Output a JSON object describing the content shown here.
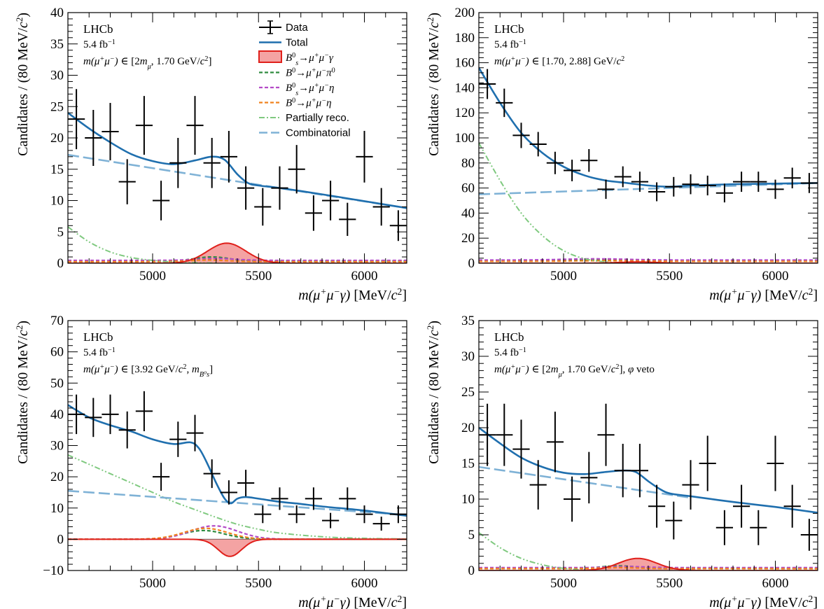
{
  "chart_data": [
    {
      "type": "line",
      "panel": "top-left",
      "ylabel": "Candidates / (80 MeV/c²)",
      "xlabel": "m(μ⁺μ⁻γ) [MeV/c²]",
      "xlim": [
        4600,
        6200
      ],
      "ylim": [
        0,
        40
      ],
      "xticks": [
        5000,
        5500,
        6000
      ],
      "yticks": [
        0,
        5,
        10,
        15,
        20,
        25,
        30,
        35,
        40
      ],
      "annotation": {
        "experiment": "LHCb",
        "lumi": "5.4 fb⁻¹",
        "range": "m(μ⁺μ⁻) ∈ [2m_μ, 1.70 GeV/c²]"
      },
      "legend": {
        "placement": "top-right",
        "entries": [
          "Data",
          "Total",
          "B⁰s→μ⁺μ⁻γ",
          "B⁰→μ⁺μ⁻π⁰",
          "B⁰s→μ⁺μ⁻η",
          "B⁰→μ⁺μ⁻η",
          "Partially reco.",
          "Combinatorial"
        ]
      },
      "data": {
        "x": [
          4640,
          4720,
          4800,
          4880,
          4960,
          5040,
          5120,
          5200,
          5280,
          5360,
          5440,
          5520,
          5600,
          5680,
          5760,
          5840,
          5920,
          6000,
          6080,
          6160
        ],
        "y": [
          23,
          20,
          21,
          13,
          22,
          10,
          16,
          22,
          16,
          17,
          12,
          9,
          12,
          15,
          8,
          10,
          7,
          17,
          9,
          6
        ]
      },
      "series": [
        {
          "name": "Total",
          "x": [
            4600,
            4700,
            4800,
            4900,
            5000,
            5100,
            5200,
            5280,
            5340,
            5400,
            5450,
            5500,
            5600,
            5800,
            6000,
            6200
          ],
          "y": [
            24,
            21.5,
            19.3,
            17.4,
            16.3,
            15.8,
            16.4,
            17.0,
            16.5,
            14.2,
            12.8,
            12.4,
            12.0,
            11.0,
            9.9,
            8.8
          ]
        },
        {
          "name": "Combinatorial",
          "x": [
            4600,
            6200
          ],
          "y": [
            17.3,
            8.8
          ]
        },
        {
          "name": "Partially reco.",
          "x": [
            4600,
            4700,
            4800,
            4900,
            5000,
            5100,
            5200,
            5300
          ],
          "y": [
            5.8,
            3.4,
            1.8,
            0.9,
            0.45,
            0.2,
            0.08,
            0.02
          ]
        },
        {
          "name": "B⁰s→μ⁺μ⁻γ",
          "peak_x": 5350,
          "sigma": 90,
          "peak": 3.2,
          "fill": true
        },
        {
          "name": "B⁰→μ⁺μ⁻π⁰",
          "baseline": 0.35,
          "peak_x": 5280,
          "sigma": 80,
          "peak": 0.65
        },
        {
          "name": "B⁰s→μ⁺μ⁻η",
          "baseline": 0.45,
          "peak_x": 5300,
          "sigma": 90,
          "peak": 0.3
        },
        {
          "name": "B⁰→μ⁺μ⁻η",
          "baseline": 0.25,
          "peak_x": 5260,
          "sigma": 90,
          "peak": 0.25
        }
      ]
    },
    {
      "type": "line",
      "panel": "top-right",
      "ylabel": "Candidates / (80 MeV/c²)",
      "xlabel": "m(μ⁺μ⁻γ) [MeV/c²]",
      "xlim": [
        4600,
        6200
      ],
      "ylim": [
        0,
        200
      ],
      "xticks": [
        5000,
        5500,
        6000
      ],
      "yticks": [
        0,
        20,
        40,
        60,
        80,
        100,
        120,
        140,
        160,
        180,
        200
      ],
      "annotation": {
        "experiment": "LHCb",
        "lumi": "5.4 fb⁻¹",
        "range": "m(μ⁺μ⁻) ∈ [1.70, 2.88] GeV/c²"
      },
      "data": {
        "x": [
          4640,
          4720,
          4800,
          4880,
          4960,
          5040,
          5120,
          5200,
          5280,
          5360,
          5440,
          5520,
          5600,
          5680,
          5760,
          5840,
          5920,
          6000,
          6080,
          6160
        ],
        "y": [
          143,
          128,
          102,
          95,
          80,
          74,
          82,
          59,
          69,
          65,
          57,
          61,
          63,
          62,
          56,
          65,
          65,
          59,
          68,
          64
        ]
      },
      "series": [
        {
          "name": "Total",
          "x": [
            4600,
            4700,
            4800,
            4900,
            5000,
            5100,
            5200,
            5300,
            5400,
            5500,
            5600,
            5800,
            6000,
            6200
          ],
          "y": [
            156,
            128,
            104,
            88,
            77,
            70,
            66,
            64,
            62,
            61,
            62,
            63,
            63.5,
            64
          ]
        },
        {
          "name": "Combinatorial",
          "x": [
            4600,
            6200
          ],
          "y": [
            55,
            64
          ]
        },
        {
          "name": "Partially reco.",
          "x": [
            4600,
            4700,
            4800,
            4900,
            5000,
            5100,
            5200,
            5300
          ],
          "y": [
            96,
            66,
            40,
            22,
            10,
            3.5,
            1,
            0.2
          ]
        },
        {
          "name": "B⁰s→μ⁺μ⁻γ",
          "peak_x": 5350,
          "sigma": 90,
          "peak": 1.0,
          "fill": true
        },
        {
          "name": "B⁰→μ⁺μ⁻π⁰",
          "baseline": 2.0,
          "peak_x": 5200,
          "sigma": 150,
          "peak": 1.0
        },
        {
          "name": "B⁰s→μ⁺μ⁻η",
          "baseline": 2.5,
          "peak_x": 5150,
          "sigma": 150,
          "peak": 1.0
        },
        {
          "name": "B⁰→μ⁺μ⁻η",
          "baseline": 1.5,
          "peak_x": 5200,
          "sigma": 150,
          "peak": 0.5
        }
      ]
    },
    {
      "type": "line",
      "panel": "bottom-left",
      "ylabel": "Candidates / (80 MeV/c²)",
      "xlabel": "m(μ⁺μ⁻γ) [MeV/c²]",
      "xlim": [
        4600,
        6200
      ],
      "ylim": [
        -10,
        70
      ],
      "xticks": [
        5000,
        5500,
        6000
      ],
      "yticks": [
        -10,
        0,
        10,
        20,
        30,
        40,
        50,
        60,
        70
      ],
      "annotation": {
        "experiment": "LHCb",
        "lumi": "5.4 fb⁻¹",
        "range": "m(μ⁺μ⁻) ∈ [3.92 GeV/c², m_B⁰s]"
      },
      "data": {
        "x": [
          4640,
          4720,
          4800,
          4880,
          4960,
          5040,
          5120,
          5200,
          5280,
          5360,
          5440,
          5520,
          5600,
          5680,
          5760,
          5840,
          5920,
          6000,
          6080,
          6160
        ],
        "y": [
          40,
          39,
          40,
          35,
          41,
          20,
          32,
          34,
          21,
          15,
          18,
          8,
          13,
          8,
          13,
          6,
          13,
          8,
          5,
          8
        ]
      },
      "series": [
        {
          "name": "Total",
          "x": [
            4600,
            4700,
            4800,
            4900,
            5000,
            5100,
            5180,
            5220,
            5260,
            5300,
            5340,
            5370,
            5400,
            5440,
            5500,
            5600,
            5700,
            5800,
            6000,
            6200
          ],
          "y": [
            43,
            39,
            36.5,
            34.5,
            32,
            30.5,
            31,
            29,
            24,
            18,
            13,
            11.5,
            13,
            13.5,
            13,
            12,
            11.3,
            10.5,
            9.2,
            7.5
          ]
        },
        {
          "name": "Combinatorial",
          "x": [
            4600,
            6200
          ],
          "y": [
            15.5,
            7.8
          ]
        },
        {
          "name": "Partially reco.",
          "x": [
            4600,
            4700,
            4800,
            4900,
            5000,
            5100,
            5200,
            5300,
            5400,
            5500,
            5600,
            5800,
            6000,
            6200
          ],
          "y": [
            27,
            24,
            21,
            18,
            15,
            12,
            9.5,
            7,
            4.8,
            3.2,
            2,
            0.8,
            0.3,
            0.1
          ]
        },
        {
          "name": "B⁰s→μ⁺μ⁻γ",
          "peak_x": 5365,
          "sigma": 55,
          "peak": -5.5,
          "fill": true
        },
        {
          "name": "B⁰→μ⁺μ⁻π⁰",
          "baseline": 0,
          "peak_x": 5240,
          "sigma": 100,
          "peak": 2.8
        },
        {
          "name": "B⁰s→μ⁺μ⁻η",
          "baseline": 0,
          "peak_x": 5290,
          "sigma": 110,
          "peak": 4.3
        },
        {
          "name": "B⁰→μ⁺μ⁻η",
          "baseline": 0,
          "peak_x": 5250,
          "sigma": 105,
          "peak": 3.5
        }
      ]
    },
    {
      "type": "line",
      "panel": "bottom-right",
      "ylabel": "Candidates / (80 MeV/c²)",
      "xlabel": "m(μ⁺μ⁻γ) [MeV/c²]",
      "xlim": [
        4600,
        6200
      ],
      "ylim": [
        0,
        35
      ],
      "xticks": [
        5000,
        5500,
        6000
      ],
      "yticks": [
        0,
        5,
        10,
        15,
        20,
        25,
        30,
        35
      ],
      "annotation": {
        "experiment": "LHCb",
        "lumi": "5.4 fb⁻¹",
        "range": "m(μ⁺μ⁻) ∈ [2m_μ, 1.70 GeV/c²], φ veto"
      },
      "data": {
        "x": [
          4640,
          4720,
          4800,
          4880,
          4960,
          5040,
          5120,
          5200,
          5280,
          5360,
          5440,
          5520,
          5600,
          5680,
          5760,
          5840,
          5920,
          6000,
          6080,
          6160
        ],
        "y": [
          19,
          19,
          17,
          12,
          18,
          10,
          13,
          19,
          14,
          14,
          9,
          7,
          12,
          15,
          6,
          9,
          6,
          15,
          9,
          5
        ]
      },
      "series": [
        {
          "name": "Total",
          "x": [
            4600,
            4700,
            4800,
            4900,
            5000,
            5100,
            5200,
            5280,
            5340,
            5400,
            5450,
            5500,
            5600,
            5800,
            6000,
            6200
          ],
          "y": [
            20,
            17.8,
            15.8,
            14.5,
            13.7,
            13.5,
            13.8,
            14.0,
            13.8,
            12.5,
            11.5,
            10.8,
            10.4,
            9.6,
            8.9,
            8.1
          ]
        },
        {
          "name": "Combinatorial",
          "x": [
            4600,
            5600
          ],
          "y": [
            14.5,
            10.2
          ]
        },
        {
          "name": "Partially reco.",
          "x": [
            4600,
            4700,
            4800,
            4900,
            5000,
            5100
          ],
          "y": [
            5.3,
            3.2,
            1.7,
            0.8,
            0.3,
            0.05
          ]
        },
        {
          "name": "B⁰s→μ⁺μ⁻γ",
          "peak_x": 5350,
          "sigma": 90,
          "peak": 1.7,
          "fill": true
        },
        {
          "name": "B⁰→μ⁺μ⁻π⁰",
          "baseline": 0.3,
          "peak_x": 5260,
          "sigma": 80,
          "peak": 0.35
        },
        {
          "name": "B⁰s→μ⁺μ⁻η",
          "baseline": 0.4,
          "peak_x": 5300,
          "sigma": 90,
          "peak": 0.15
        },
        {
          "name": "B⁰→μ⁺μ⁻η",
          "baseline": 0.25,
          "peak_x": 5260,
          "sigma": 90,
          "peak": 0.15
        }
      ]
    }
  ],
  "colors": {
    "data": "#000000",
    "total": "#1f6fae",
    "signal_fill": "#f4a3a3",
    "signal_line": "#e0201b",
    "b0_pi0": "#2e8b3e",
    "bs_eta": "#b44bc7",
    "b0_eta": "#f0821e",
    "partially_reco": "#7fc97f",
    "combinatorial": "#7fb2d6"
  }
}
